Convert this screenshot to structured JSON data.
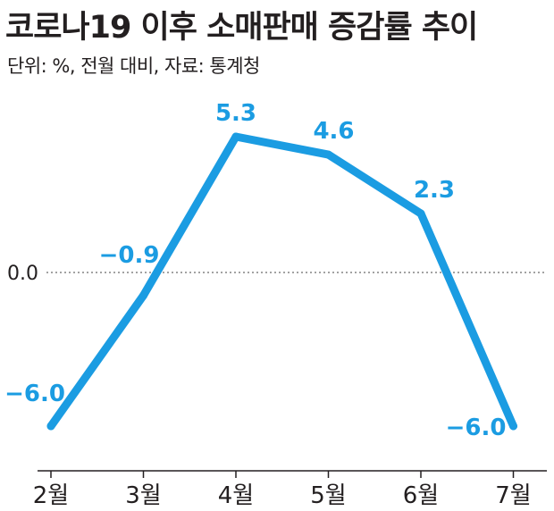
{
  "header": {
    "title": "코로나19 이후 소매판매 증감률 추이",
    "subtitle": "단위: %, 전월 대비, 자료: 통계청"
  },
  "chart_data": {
    "type": "line",
    "title": "코로나19 이후 소매판매 증감률 추이",
    "subtitle": "단위: %, 전월 대비, 자료: 통계청",
    "categories": [
      "2월",
      "3월",
      "4월",
      "5월",
      "6월",
      "7월"
    ],
    "series": [
      {
        "values": [
          -6.0,
          -0.9,
          5.3,
          4.6,
          2.3,
          -6.0
        ]
      }
    ],
    "data_labels": [
      "−6.0",
      "−0.9",
      "5.3",
      "4.6",
      "2.3",
      "−6.0"
    ],
    "reference_line": {
      "value": 0.0,
      "label": "0.0",
      "style": "dotted"
    },
    "ylim": [
      -7.5,
      6.8
    ],
    "grid": false,
    "colors": {
      "line": "#1b9ce2",
      "text": "#231f20",
      "axis": "#231f20"
    }
  }
}
